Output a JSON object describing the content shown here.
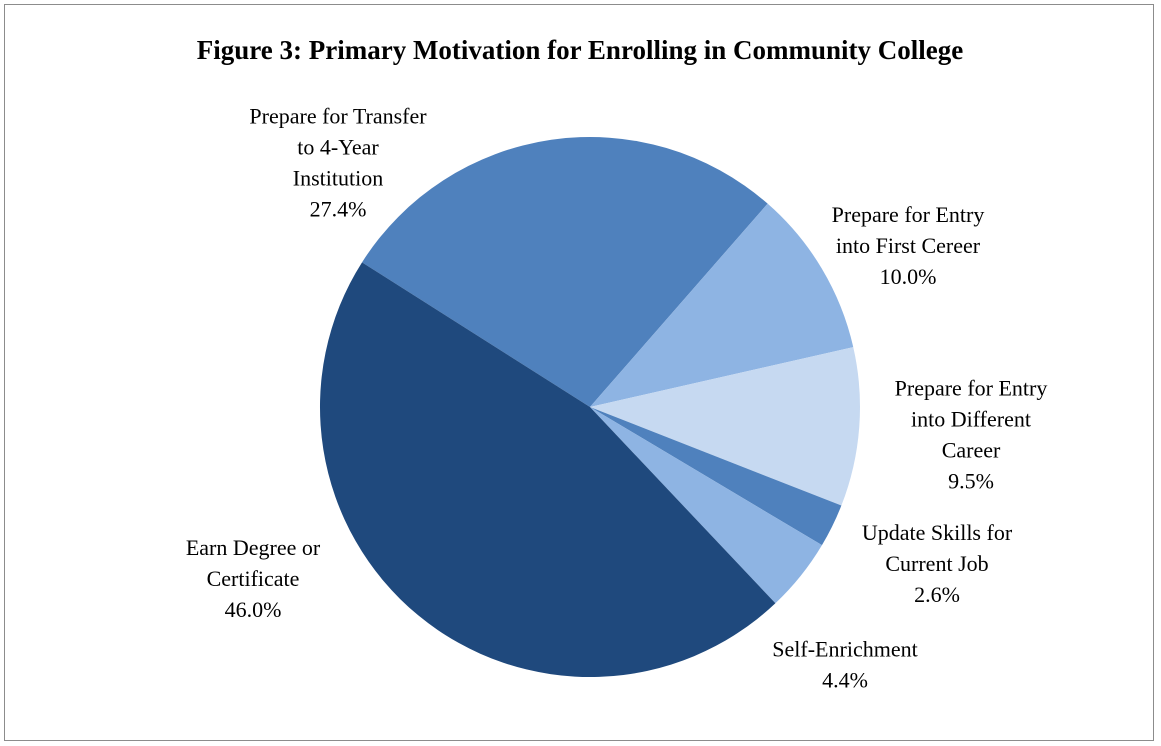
{
  "chart_data": {
    "type": "pie",
    "title": "Figure 3: Primary Motivation for Enrolling in Community College",
    "slices": [
      {
        "lines": [
          "Prepare for Transfer",
          "to 4-Year",
          "Institution"
        ],
        "pct_label": "27.4%",
        "value": 27.4,
        "color": "#4f81bd"
      },
      {
        "lines": [
          "Prepare for Entry",
          "into First Cereer"
        ],
        "pct_label": "10.0%",
        "value": 10.0,
        "color": "#8eb4e3"
      },
      {
        "lines": [
          "Prepare for Entry",
          "into Different",
          "Career"
        ],
        "pct_label": "9.5%",
        "value": 9.5,
        "color": "#c6d9f1"
      },
      {
        "lines": [
          "Update Skills for",
          "Current Job"
        ],
        "pct_label": "2.6%",
        "value": 2.6,
        "color": "#4f81bd"
      },
      {
        "lines": [
          "Self-Enrichment"
        ],
        "pct_label": "4.4%",
        "value": 4.4,
        "color": "#8eb4e3"
      },
      {
        "lines": [
          "Earn Degree or",
          "Certificate"
        ],
        "pct_label": "46.0%",
        "value": 46.0,
        "color": "#1f497d"
      }
    ],
    "start_angle_deg": -57.6,
    "direction": "clockwise"
  }
}
